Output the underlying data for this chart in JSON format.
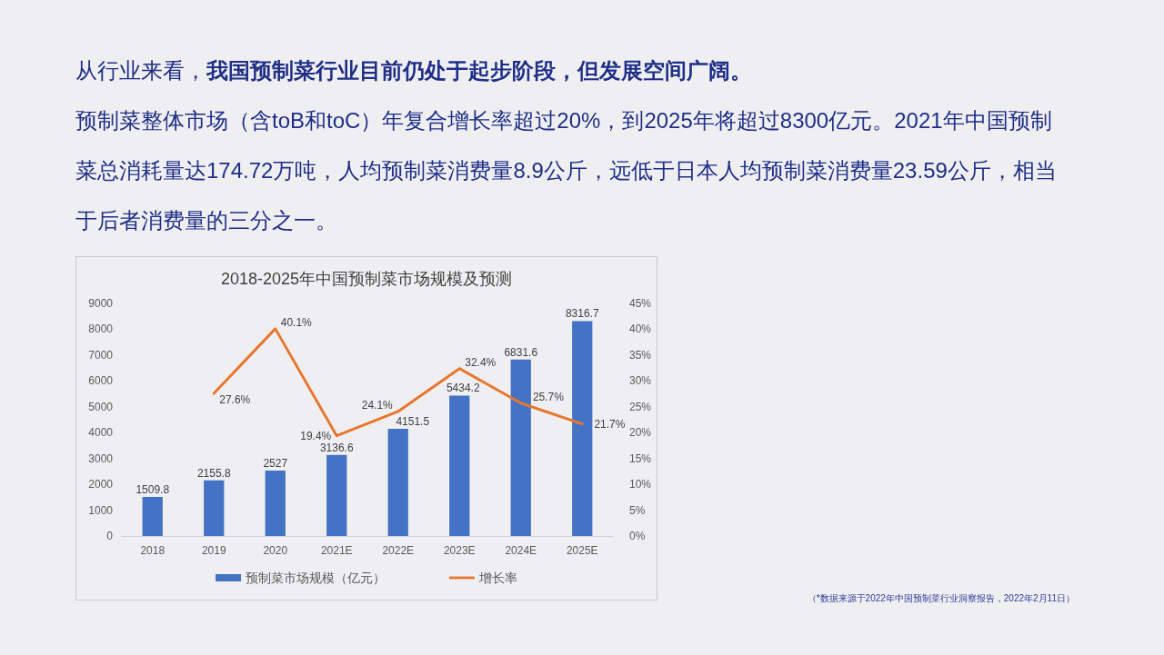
{
  "chart_data": {
    "type": "bar",
    "title": "2018-2025年中国预制菜市场规模及预测",
    "categories": [
      "2018",
      "2019",
      "2020",
      "2021E",
      "2022E",
      "2023E",
      "2024E",
      "2025E"
    ],
    "series": [
      {
        "name": "预制菜市场规模（亿元）",
        "color": "#4472c4",
        "values": [
          1509.8,
          2155.8,
          2527,
          3136.6,
          4151.5,
          5434.2,
          6831.6,
          8316.7
        ],
        "value_labels": [
          "1509.8",
          "2155.8",
          "2527",
          "3136.6",
          "4151.5",
          "5434.2",
          "6831.6",
          "8316.7"
        ]
      },
      {
        "name": "增长率",
        "type": "line",
        "axis": "y2",
        "color": "#e8772e",
        "values": [
          null,
          27.6,
          40.1,
          19.4,
          24.1,
          32.4,
          25.7,
          21.7
        ],
        "value_labels": [
          null,
          "27.6%",
          "40.1%",
          "19.4%",
          "24.1%",
          "32.4%",
          "25.7%",
          "21.7%"
        ]
      }
    ],
    "ylim": [
      0,
      9000
    ],
    "yticks": [
      0,
      1000,
      2000,
      3000,
      4000,
      5000,
      6000,
      7000,
      8000,
      9000
    ],
    "y2lim": [
      0,
      45
    ],
    "y2ticks": [
      {
        "value": 0,
        "label": "0%"
      },
      {
        "value": 5,
        "label": "5%"
      },
      {
        "value": 10,
        "label": "10%"
      },
      {
        "value": 15,
        "label": "15%"
      },
      {
        "value": 20,
        "label": "20%"
      },
      {
        "value": 25,
        "label": "25%"
      },
      {
        "value": 30,
        "label": "30%"
      },
      {
        "value": 35,
        "label": "35%"
      },
      {
        "value": 40,
        "label": "40%"
      },
      {
        "value": 45,
        "label": "45%"
      }
    ],
    "legend": "bottom",
    "annotations": [
      "从行业来看，",
      "我国预制菜行业目前仍处于起步阶段，但发展空间广阔。",
      "预制菜整体市场（含toB和toC）年复合增长率超过20%，到2025年将超过8300亿元。2021年中国预制菜总消耗量达174.72万吨，人均预制菜消费量8.9公斤，远低于日本人均预制菜消费量23.59公斤，相当于后者消费量的三分之一。",
      "（*数据来源于2022年中国预制菜行业洞察报告，2022年2月11日）"
    ]
  }
}
